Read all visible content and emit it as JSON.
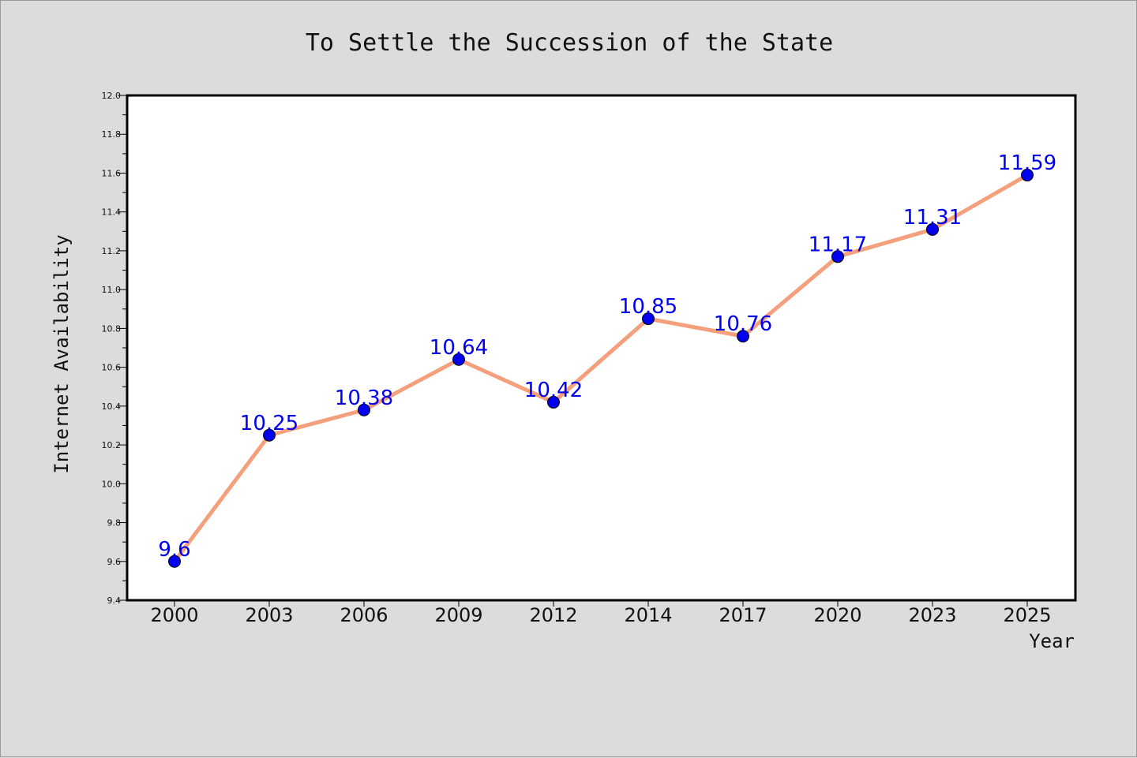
{
  "chart_data": {
    "type": "line",
    "title": "To Settle the Succession of the State",
    "xlabel": "Year",
    "ylabel": "Internet Availability",
    "categories": [
      "2000",
      "2003",
      "2006",
      "2009",
      "2012",
      "2014",
      "2017",
      "2020",
      "2023",
      "2025"
    ],
    "series": [
      {
        "values": [
          9.6,
          10.25,
          10.38,
          10.64,
          10.42,
          10.85,
          10.76,
          11.17,
          11.31,
          11.59
        ]
      }
    ],
    "data_labels": [
      "9.6",
      "10.25",
      "10.38",
      "10.64",
      "10.42",
      "10.85",
      "10.76",
      "11.17",
      "11.31",
      "11.59"
    ],
    "ylim": [
      9.4,
      12.0
    ],
    "yticks": [
      "9.4",
      "9.6",
      "9.8",
      "10.0",
      "10.2",
      "10.4",
      "10.6",
      "10.8",
      "11.0",
      "11.2",
      "11.4",
      "11.6",
      "11.8",
      "12.0"
    ],
    "grid": false,
    "legend": "none",
    "colors": {
      "line": "#f4a07c",
      "marker": "#0000ee",
      "data_label": "#0000ee",
      "plot_background": "#ffffff",
      "page_background": "#dcdcdc"
    }
  }
}
